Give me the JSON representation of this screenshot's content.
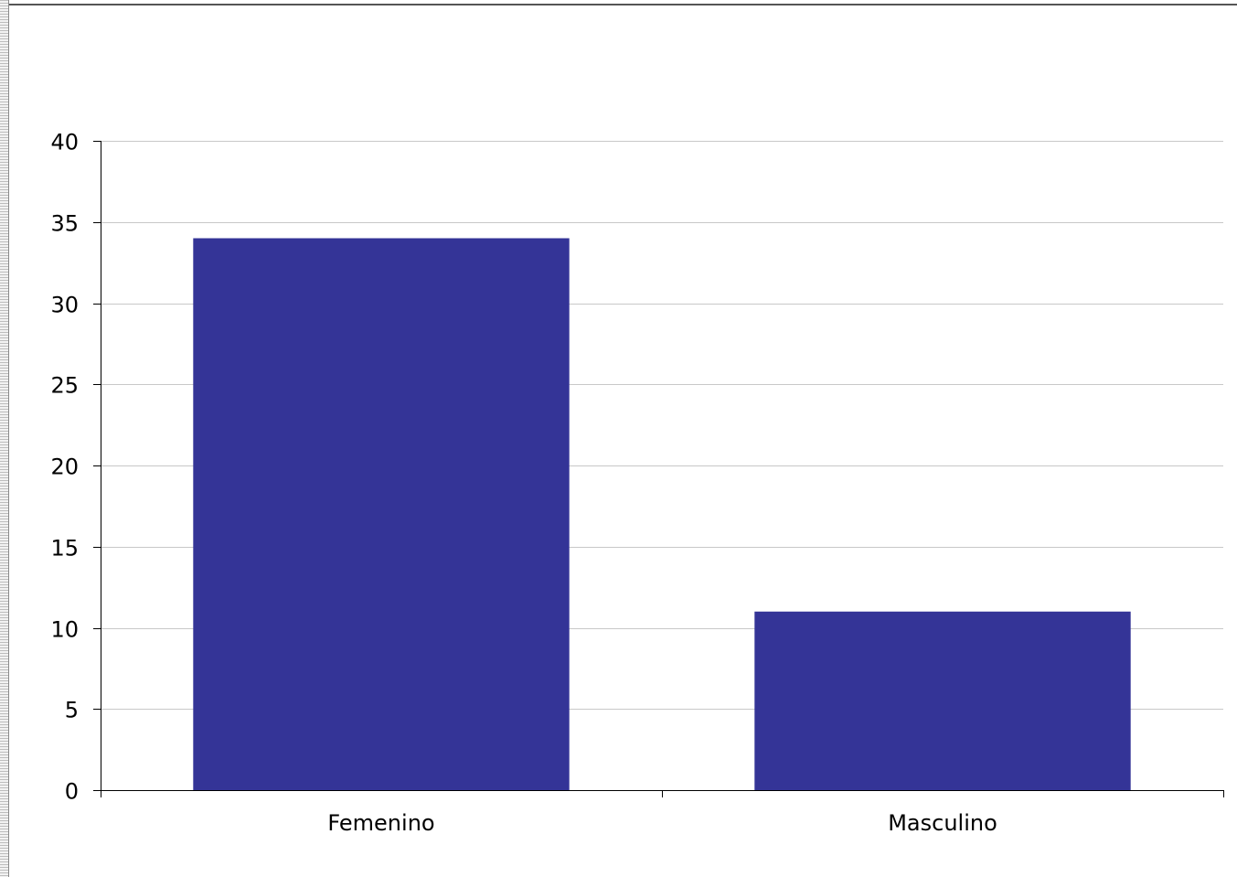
{
  "chart_data": {
    "type": "bar",
    "categories": [
      "Femenino",
      "Masculino"
    ],
    "values": [
      34,
      11
    ],
    "title": "",
    "xlabel": "",
    "ylabel": "",
    "ylim": [
      0,
      40
    ],
    "yticks": [
      0,
      5,
      10,
      15,
      20,
      25,
      30,
      35,
      40
    ],
    "ytick_labels": [
      "0",
      "5",
      "10",
      "15",
      "20",
      "25",
      "30",
      "35",
      "40"
    ],
    "grid": true,
    "legend": "none",
    "colors": {
      "bar": "#343497",
      "grid": "#c8c8c8",
      "axis": "#000000"
    }
  }
}
